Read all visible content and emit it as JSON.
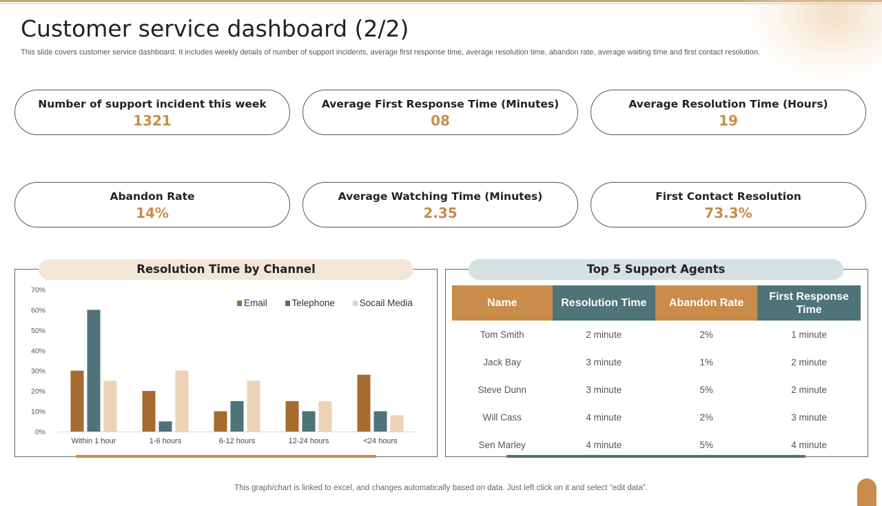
{
  "page": {
    "title": "Customer service dashboard (2/2)",
    "subtitle": "This slide covers customer service dashboard. It includes weekly details of number of support incidents, average first response time, average resolution time, abandon rate, average waiting time and first contact resolution.",
    "footer": "This graph/chart is linked to excel,  and changes automatically based on data. Just left click on it and select “edit data”."
  },
  "colors": {
    "accent_orange": "#c98c4a",
    "teal": "#4e7379",
    "brown": "#a56b2f",
    "tan": "#ecd2b6"
  },
  "kpis": [
    {
      "label": "Number of support incident  this week",
      "value": "1321"
    },
    {
      "label": "Average First Response Time (Minutes)",
      "value": "08"
    },
    {
      "label": "Average Resolution Time (Hours)",
      "value": "19"
    },
    {
      "label": "Abandon Rate",
      "value": "14%"
    },
    {
      "label": "Average Watching  Time (Minutes)",
      "value": "2.35"
    },
    {
      "label": "First Contact Resolution",
      "value": "73.3%"
    }
  ],
  "chart_data": {
    "type": "bar",
    "title": "Resolution  Time by Channel",
    "categories": [
      "Within 1 hour",
      "1-6 hours",
      "6-12 hours",
      "12-24 hours",
      "<24 hours"
    ],
    "series": [
      {
        "name": "Email",
        "color": "#a56b2f",
        "values": [
          30,
          20,
          10,
          15,
          28
        ]
      },
      {
        "name": "Telephone",
        "color": "#4e7379",
        "values": [
          60,
          5,
          15,
          10,
          10
        ]
      },
      {
        "name": "Socail Media",
        "color": "#ecd2b6",
        "values": [
          25,
          30,
          25,
          15,
          8
        ]
      }
    ],
    "ylim": [
      0,
      70
    ],
    "yticks": [
      "0%",
      "10%",
      "20%",
      "30%",
      "40%",
      "50%",
      "60%",
      "70%"
    ],
    "grid": false,
    "legend": "top-right"
  },
  "agents": {
    "title": "Top 5 Support Agents",
    "headers": [
      "Name",
      "Resolution Time",
      "Abandon Rate",
      "First Response Time"
    ],
    "rows": [
      [
        "Tom Smith",
        "2 minute",
        "2%",
        "1 minute"
      ],
      [
        "Jack Bay",
        "3 minute",
        "1%",
        "2 minute"
      ],
      [
        "Steve Dunn",
        "3 minute",
        "5%",
        "2 minute"
      ],
      [
        "Will Cass",
        "4 minute",
        "2%",
        "3 minute"
      ],
      [
        "Sen Marley",
        "4 minute",
        "5%",
        "4 minute"
      ]
    ]
  }
}
